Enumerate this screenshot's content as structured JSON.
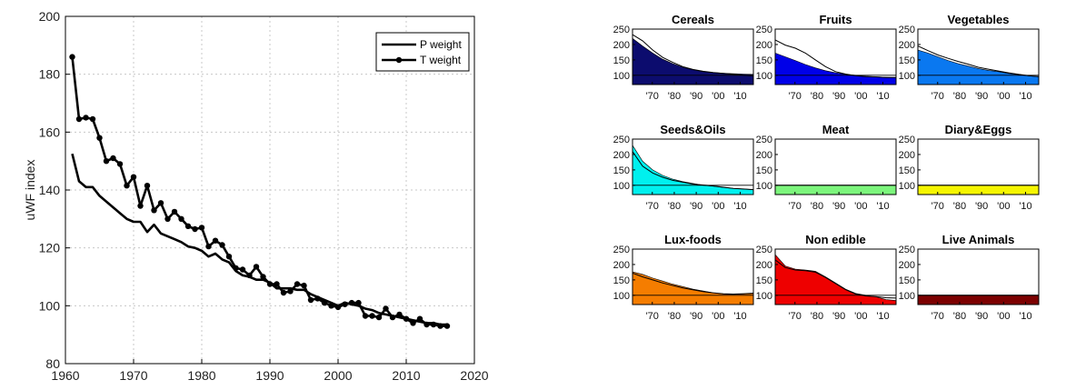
{
  "chart_data": [
    {
      "type": "line",
      "title": "",
      "xlabel": "",
      "ylabel": "uWF index",
      "xlim": [
        1960,
        2020
      ],
      "ylim": [
        80,
        200
      ],
      "xticks": [
        1960,
        1970,
        1980,
        1990,
        2000,
        2010,
        2020
      ],
      "yticks": [
        80,
        100,
        120,
        140,
        160,
        180,
        200
      ],
      "xtick_labels": [
        "1960",
        "1970",
        "1980",
        "1990",
        "2000",
        "2010",
        "2020"
      ],
      "ytick_labels": [
        "80",
        "100",
        "120",
        "140",
        "160",
        "180",
        "200"
      ],
      "grid": true,
      "legend_position": "top-right",
      "series": [
        {
          "name": "P weight",
          "marker": "none",
          "x": [
            1961,
            1962,
            1963,
            1964,
            1965,
            1966,
            1967,
            1968,
            1969,
            1970,
            1971,
            1972,
            1973,
            1974,
            1975,
            1976,
            1977,
            1978,
            1979,
            1980,
            1981,
            1982,
            1983,
            1984,
            1985,
            1986,
            1987,
            1988,
            1989,
            1990,
            1991,
            1992,
            1993,
            1994,
            1995,
            1996,
            1997,
            1998,
            1999,
            2000,
            2001,
            2002,
            2003,
            2004,
            2005,
            2006,
            2007,
            2008,
            2009,
            2010,
            2011,
            2012,
            2013,
            2014,
            2015,
            2016
          ],
          "values": [
            152.5,
            143,
            141,
            141,
            138,
            136,
            134,
            132,
            130,
            129,
            129,
            125.5,
            128,
            125,
            124,
            123,
            122,
            120.5,
            120,
            119,
            117,
            118,
            116,
            115,
            112,
            110.5,
            110,
            109,
            109,
            108,
            106,
            106,
            106,
            105.5,
            105.5,
            104,
            103,
            102,
            101,
            100,
            101,
            100.5,
            100,
            99,
            98.5,
            97.5,
            97,
            96.5,
            96,
            95.5,
            95,
            94.5,
            94,
            94,
            93.5,
            93.5
          ]
        },
        {
          "name": "T weight",
          "marker": "circle",
          "x": [
            1961,
            1962,
            1963,
            1964,
            1965,
            1966,
            1967,
            1968,
            1969,
            1970,
            1971,
            1972,
            1973,
            1974,
            1975,
            1976,
            1977,
            1978,
            1979,
            1980,
            1981,
            1982,
            1983,
            1984,
            1985,
            1986,
            1987,
            1988,
            1989,
            1990,
            1991,
            1992,
            1993,
            1994,
            1995,
            1996,
            1997,
            1998,
            1999,
            2000,
            2001,
            2002,
            2003,
            2004,
            2005,
            2006,
            2007,
            2008,
            2009,
            2010,
            2011,
            2012,
            2013,
            2014,
            2015,
            2016
          ],
          "values": [
            186,
            164.5,
            165,
            164.5,
            158,
            150,
            151,
            149,
            141.5,
            144.5,
            134.5,
            141.5,
            133,
            135.5,
            130,
            132.5,
            130,
            127.5,
            126.5,
            127,
            120.5,
            122.5,
            121,
            117,
            113,
            112.5,
            110.5,
            113.5,
            110,
            107.5,
            107.5,
            104.5,
            105,
            107.5,
            107,
            102,
            102.5,
            101,
            100,
            99.5,
            100.5,
            101,
            101,
            96.5,
            96.5,
            96,
            99,
            96,
            97,
            95.5,
            94,
            95.5,
            93.5,
            93.5,
            93,
            93
          ]
        }
      ]
    },
    {
      "type": "area",
      "layout": "3x3 small multiples",
      "ylim": [
        70,
        250
      ],
      "yticks": [
        100,
        150,
        200,
        250
      ],
      "ytick_labels": [
        "100",
        "150",
        "200",
        "250"
      ],
      "xtick_labels": [
        "'70",
        "'80",
        "'90",
        "'00",
        "'10"
      ],
      "x_start": 1961,
      "x_end": 2016,
      "reference_line": 100,
      "panels": [
        {
          "title": "Cereals",
          "fill_color": "#0c0c6e",
          "filled_series": [
            220,
            195,
            172,
            152,
            138,
            126,
            118,
            112,
            109,
            107,
            105,
            104,
            103
          ],
          "line_series": [
            232,
            212,
            182,
            158,
            142,
            128,
            119,
            113,
            109,
            106,
            103,
            100,
            98
          ]
        },
        {
          "title": "Fruits",
          "fill_color": "#0000e8",
          "filled_series": [
            172,
            160,
            148,
            135,
            124,
            115,
            108,
            103,
            100,
            97,
            95,
            94,
            93
          ],
          "line_series": [
            215,
            198,
            188,
            172,
            150,
            128,
            112,
            104,
            99,
            96,
            95,
            93,
            93
          ]
        },
        {
          "title": "Vegetables",
          "fill_color": "#0a78f0",
          "filled_series": [
            182,
            172,
            160,
            148,
            138,
            130,
            122,
            116,
            112,
            106,
            102,
            98,
            95
          ],
          "line_series": [
            195,
            180,
            166,
            155,
            145,
            136,
            126,
            120,
            114,
            108,
            103,
            99,
            96
          ]
        },
        {
          "title": "Seeds&Oils",
          "fill_color": "#00f0ee",
          "filled_series": [
            230,
            178,
            150,
            132,
            120,
            112,
            106,
            100,
            97,
            93,
            90,
            88,
            86
          ],
          "line_series": [
            210,
            162,
            140,
            126,
            116,
            110,
            104,
            101,
            98,
            94,
            90,
            88,
            86
          ]
        },
        {
          "title": "Meat",
          "fill_color": "#7cf57c",
          "filled_series": [
            100,
            100,
            100,
            100,
            100,
            100,
            100,
            100,
            100,
            100,
            100,
            100,
            100
          ],
          "line_series": [
            100,
            100,
            100,
            100,
            100,
            100,
            100,
            100,
            100,
            100,
            100,
            100,
            100
          ]
        },
        {
          "title": "Diary&Eggs",
          "fill_color": "#f5f500",
          "filled_series": [
            100,
            100,
            100,
            100,
            100,
            100,
            100,
            100,
            100,
            100,
            100,
            100,
            100
          ],
          "line_series": [
            100,
            100,
            100,
            100,
            100,
            100,
            100,
            100,
            100,
            100,
            100,
            100,
            100
          ]
        },
        {
          "title": "Lux-foods",
          "fill_color": "#f57d00",
          "filled_series": [
            176,
            168,
            156,
            146,
            136,
            128,
            120,
            114,
            108,
            104,
            103,
            104,
            106
          ],
          "line_series": [
            172,
            160,
            150,
            140,
            132,
            124,
            118,
            112,
            108,
            105,
            104,
            105,
            107
          ]
        },
        {
          "title": "Non edible",
          "fill_color": "#ee0000",
          "filled_series": [
            232,
            195,
            185,
            182,
            178,
            160,
            140,
            120,
            106,
            100,
            95,
            86,
            83
          ],
          "line_series": [
            215,
            190,
            182,
            180,
            175,
            158,
            138,
            118,
            104,
            98,
            96,
            92,
            91
          ]
        },
        {
          "title": "Live Animals",
          "fill_color": "#7c0000",
          "filled_series": [
            100,
            100,
            100,
            100,
            100,
            100,
            100,
            100,
            100,
            100,
            100,
            100,
            100
          ],
          "line_series": [
            100,
            100,
            100,
            100,
            100,
            100,
            100,
            100,
            100,
            100,
            100,
            100,
            100
          ]
        }
      ]
    }
  ]
}
